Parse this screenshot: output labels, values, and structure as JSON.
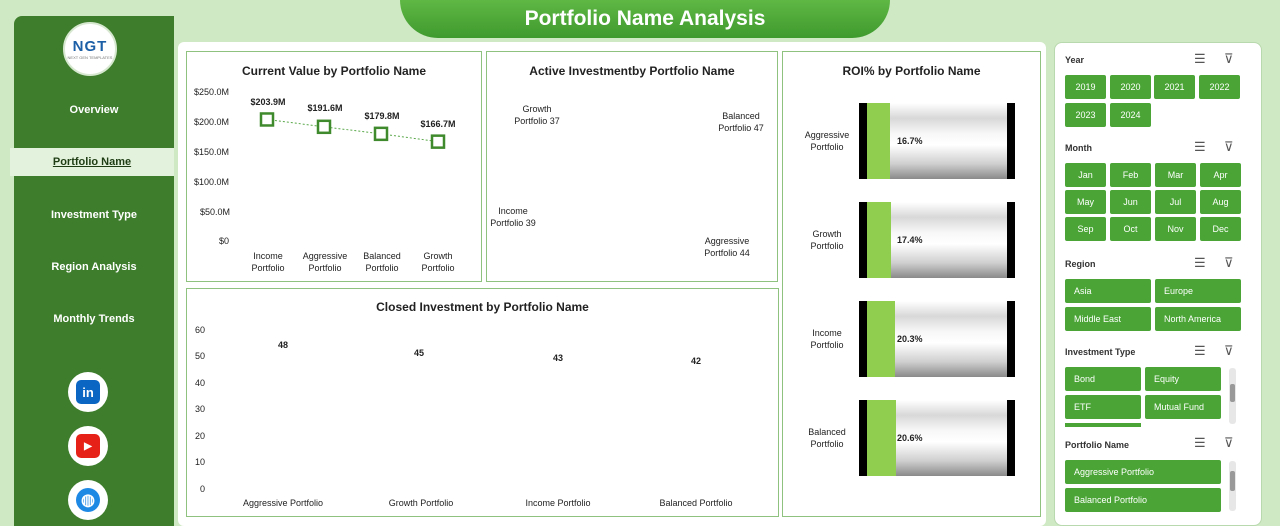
{
  "title": "Portfolio Name Analysis",
  "logo": {
    "text": "NGT",
    "subtext": "NEXT GEN TEMPLATES"
  },
  "nav": [
    {
      "label": "Overview",
      "active": false
    },
    {
      "label": "Portfolio Name",
      "active": true
    },
    {
      "label": "Investment Type",
      "active": false
    },
    {
      "label": "Region Analysis",
      "active": false
    },
    {
      "label": "Monthly Trends",
      "active": false
    }
  ],
  "social": [
    {
      "icon": "linkedin-icon",
      "glyph": "in",
      "color": "#0a66c2"
    },
    {
      "icon": "youtube-icon",
      "glyph": "▶",
      "color": "#e62117"
    },
    {
      "icon": "globe-icon",
      "glyph": "◍",
      "color": "#1e88e5"
    }
  ],
  "charts": {
    "current_value": {
      "title": "Current Value by Portfolio Name",
      "y_ticks": [
        "$250.0M",
        "$200.0M",
        "$150.0M",
        "$100.0M",
        "$50.0M",
        "$0"
      ],
      "categories": [
        [
          "Income",
          "Portfolio"
        ],
        [
          "Aggressive",
          "Portfolio"
        ],
        [
          "Balanced",
          "Portfolio"
        ],
        [
          "Growth",
          "Portfolio"
        ]
      ],
      "data_labels": [
        "$203.9M",
        "$191.6M",
        "$179.8M",
        "$166.7M"
      ]
    },
    "active_investment": {
      "title": "Active Investmentby Portfolio Name",
      "labels": [
        [
          "Growth",
          "Portfolio 37"
        ],
        [
          "Balanced",
          "Portfolio 47"
        ],
        [
          "Aggressive",
          "Portfolio 44"
        ],
        [
          "Income",
          "Portfolio 39"
        ]
      ]
    },
    "roi": {
      "title": "ROI% by Portfolio Name",
      "categories": [
        [
          "Aggressive",
          "Portfolio"
        ],
        [
          "Growth",
          "Portfolio"
        ],
        [
          "Income",
          "Portfolio"
        ],
        [
          "Balanced",
          "Portfolio"
        ]
      ],
      "value_labels": [
        "16.7%",
        "17.4%",
        "20.3%",
        "20.6%"
      ]
    },
    "closed_investment": {
      "title": "Closed Investment by Portfolio Name",
      "y_ticks": [
        "60",
        "50",
        "40",
        "30",
        "20",
        "10",
        "0"
      ],
      "categories": [
        "Aggressive Portfolio",
        "Growth Portfolio",
        "Income Portfolio",
        "Balanced Portfolio"
      ],
      "data_labels": [
        "48",
        "45",
        "43",
        "42"
      ]
    }
  },
  "chart_data": [
    {
      "type": "line",
      "title": "Current Value by Portfolio Name",
      "categories": [
        "Income Portfolio",
        "Aggressive Portfolio",
        "Balanced Portfolio",
        "Growth Portfolio"
      ],
      "values": [
        203.9,
        191.6,
        179.8,
        166.7
      ],
      "unit": "$M",
      "ylim": [
        0,
        250
      ]
    },
    {
      "type": "pie",
      "title": "Active Investmentby Portfolio Name",
      "categories": [
        "Growth Portfolio",
        "Balanced Portfolio",
        "Aggressive Portfolio",
        "Income Portfolio"
      ],
      "values": [
        37,
        47,
        44,
        39
      ]
    },
    {
      "type": "bar",
      "title": "ROI% by Portfolio Name",
      "categories": [
        "Aggressive Portfolio",
        "Growth Portfolio",
        "Income Portfolio",
        "Balanced Portfolio"
      ],
      "values": [
        16.7,
        17.4,
        20.3,
        20.6
      ],
      "unit": "%",
      "ylim": [
        0,
        100
      ]
    },
    {
      "type": "line",
      "title": "Closed Investment by Portfolio Name",
      "categories": [
        "Aggressive Portfolio",
        "Growth Portfolio",
        "Income Portfolio",
        "Balanced Portfolio"
      ],
      "values": [
        48,
        45,
        43,
        42
      ],
      "ylim": [
        0,
        60
      ]
    }
  ],
  "filters": {
    "year": {
      "label": "Year",
      "options": [
        "2019",
        "2020",
        "2021",
        "2022",
        "2023",
        "2024"
      ]
    },
    "month": {
      "label": "Month",
      "options": [
        "Jan",
        "Feb",
        "Mar",
        "Apr",
        "May",
        "Jun",
        "Jul",
        "Aug",
        "Sep",
        "Oct",
        "Nov",
        "Dec"
      ]
    },
    "region": {
      "label": "Region",
      "options": [
        "Asia",
        "Europe",
        "Middle East",
        "North America"
      ]
    },
    "investment_type": {
      "label": "Investment Type",
      "options": [
        "Bond",
        "Equity",
        "ETF",
        "Mutual Fund"
      ]
    },
    "portfolio_name": {
      "label": "Portfolio Name",
      "options": [
        "Aggressive Portfolio",
        "Balanced Portfolio"
      ]
    }
  },
  "colors": {
    "accent": "#4aa536",
    "sidebar": "#3e7d2c",
    "line": "#3f9a2e",
    "roi_fill": "#8fce4f"
  }
}
